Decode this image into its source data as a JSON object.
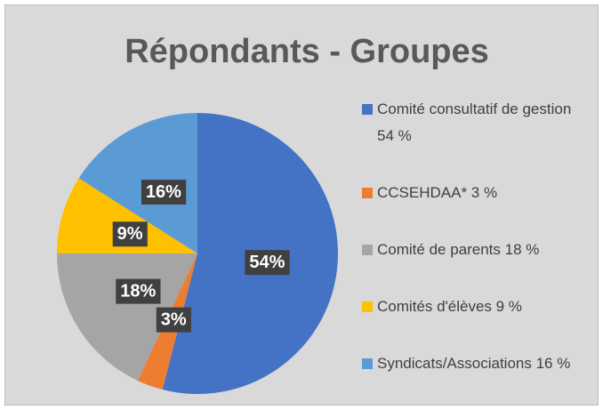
{
  "chart_data": {
    "type": "pie",
    "title": "Répondants - Groupes",
    "categories": [
      "Comité consultatif de gestion 54 %",
      "CCSEHDAA* 3 %",
      "Comité de parents 18 %",
      "Comités d'élèves 9 %",
      "Syndicats/Associations 16 %"
    ],
    "values": [
      54,
      3,
      18,
      9,
      16
    ],
    "value_labels": [
      "54%",
      "3%",
      "18%",
      "9%",
      "16%"
    ],
    "colors": [
      "#4472c4",
      "#ed7d31",
      "#a5a5a5",
      "#ffc000",
      "#5b9bd5"
    ],
    "legend": "right"
  }
}
